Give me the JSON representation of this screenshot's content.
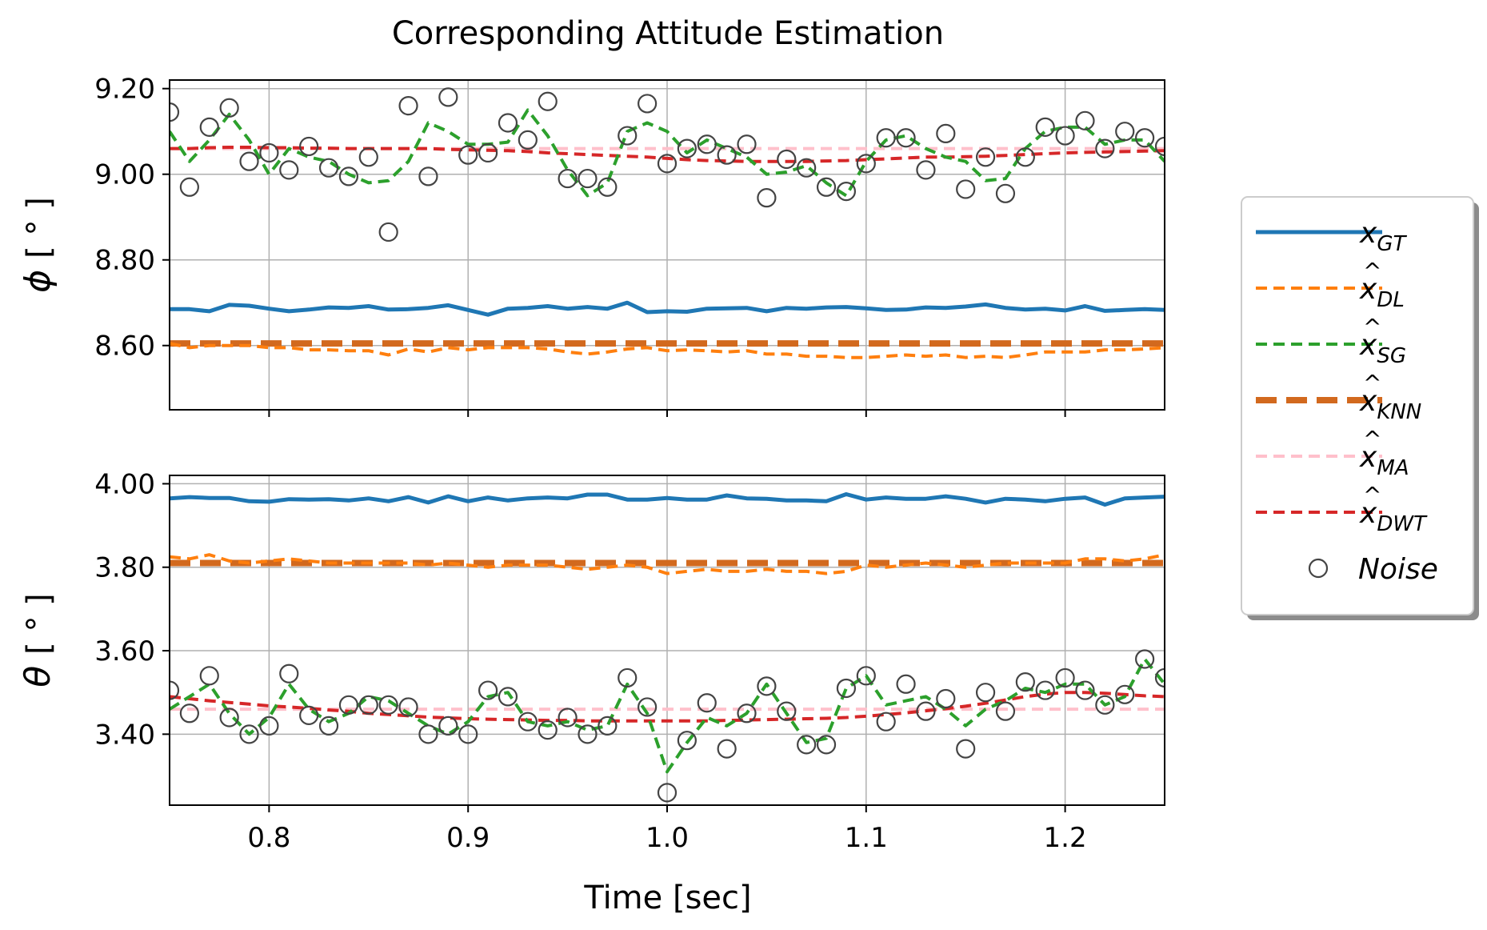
{
  "title": "Corresponding Attitude Estimation",
  "xlabel": "Time [sec]",
  "legend": {
    "placement": "right, outside plots",
    "entries": [
      {
        "key": "gt",
        "base": "x",
        "sub": "GT",
        "hat": false,
        "color": "#1f77b4",
        "style": "solid"
      },
      {
        "key": "dl",
        "base": "x",
        "sub": "DL",
        "hat": true,
        "color": "#ff7f0e",
        "style": "dashed"
      },
      {
        "key": "sg",
        "base": "x",
        "sub": "SG",
        "hat": true,
        "color": "#2ca02c",
        "style": "dashed"
      },
      {
        "key": "knn",
        "base": "x",
        "sub": "KNN",
        "hat": true,
        "color": "#d2691e",
        "style": "thick-dashed"
      },
      {
        "key": "ma",
        "base": "x",
        "sub": "MA",
        "hat": true,
        "color": "#ffc0cb",
        "style": "dashed"
      },
      {
        "key": "dwt",
        "base": "x",
        "sub": "DWT",
        "hat": true,
        "color": "#d62728",
        "style": "dashed"
      },
      {
        "key": "noise",
        "label": "Noise",
        "color": "#444444",
        "style": "marker-o"
      }
    ]
  },
  "chart_data": [
    {
      "type": "line",
      "ylabel_symbol": "ϕ",
      "ylabel_unit": "[ ° ]",
      "xlim": [
        0.75,
        1.25
      ],
      "ylim": [
        8.45,
        9.22
      ],
      "xticks": [
        0.8,
        0.9,
        1.0,
        1.1,
        1.2
      ],
      "xtick_labels": [
        "0.8",
        "0.9",
        "1.0",
        "1.1",
        "1.2"
      ],
      "yticks": [
        8.6,
        8.8,
        9.0,
        9.2
      ],
      "ytick_labels": [
        "8.60",
        "8.80",
        "9.00",
        "9.20"
      ],
      "grid": true,
      "x": [
        0.75,
        0.76,
        0.77,
        0.78,
        0.79,
        0.8,
        0.81,
        0.82,
        0.83,
        0.84,
        0.85,
        0.86,
        0.87,
        0.88,
        0.89,
        0.9,
        0.91,
        0.92,
        0.93,
        0.94,
        0.95,
        0.96,
        0.97,
        0.98,
        0.99,
        1.0,
        1.01,
        1.02,
        1.03,
        1.04,
        1.05,
        1.06,
        1.07,
        1.08,
        1.09,
        1.1,
        1.11,
        1.12,
        1.13,
        1.14,
        1.15,
        1.16,
        1.17,
        1.18,
        1.19,
        1.2,
        1.21,
        1.22,
        1.23,
        1.24,
        1.25
      ],
      "series": [
        {
          "key": "gt",
          "values": [
            8.685,
            8.685,
            8.68,
            8.695,
            8.693,
            8.686,
            8.68,
            8.684,
            8.689,
            8.688,
            8.692,
            8.684,
            8.685,
            8.688,
            8.694,
            8.683,
            8.672,
            8.686,
            8.688,
            8.692,
            8.686,
            8.69,
            8.686,
            8.7,
            8.678,
            8.68,
            8.679,
            8.686,
            8.687,
            8.688,
            8.68,
            8.688,
            8.686,
            8.689,
            8.69,
            8.687,
            8.683,
            8.684,
            8.689,
            8.688,
            8.691,
            8.696,
            8.688,
            8.684,
            8.686,
            8.682,
            8.692,
            8.681,
            8.683,
            8.685,
            8.683
          ]
        },
        {
          "key": "dl",
          "values": [
            8.605,
            8.595,
            8.6,
            8.6,
            8.6,
            8.595,
            8.595,
            8.59,
            8.59,
            8.588,
            8.588,
            8.578,
            8.592,
            8.585,
            8.595,
            8.59,
            8.595,
            8.595,
            8.595,
            8.592,
            8.585,
            8.58,
            8.585,
            8.592,
            8.595,
            8.588,
            8.59,
            8.588,
            8.585,
            8.588,
            8.58,
            8.58,
            8.575,
            8.575,
            8.572,
            8.572,
            8.575,
            8.578,
            8.575,
            8.578,
            8.572,
            8.575,
            8.572,
            8.578,
            8.585,
            8.585,
            8.585,
            8.59,
            8.59,
            8.592,
            8.595
          ]
        },
        {
          "key": "sg",
          "values": [
            9.1,
            9.03,
            9.08,
            9.14,
            9.08,
            9.0,
            9.06,
            9.04,
            9.03,
            9.0,
            8.98,
            8.985,
            9.03,
            9.12,
            9.1,
            9.07,
            9.07,
            9.075,
            9.15,
            9.09,
            9.01,
            8.95,
            8.98,
            9.1,
            9.12,
            9.1,
            9.05,
            9.08,
            9.06,
            9.04,
            9.0,
            9.005,
            9.02,
            8.98,
            8.95,
            9.03,
            9.08,
            9.09,
            9.06,
            9.04,
            9.03,
            8.985,
            8.99,
            9.06,
            9.1,
            9.11,
            9.11,
            9.07,
            9.08,
            9.08,
            9.03
          ]
        },
        {
          "key": "knn",
          "values": [
            8.605,
            8.605,
            8.605,
            8.605,
            8.605,
            8.605,
            8.605,
            8.605,
            8.605,
            8.605,
            8.605,
            8.605,
            8.605,
            8.605,
            8.605,
            8.605,
            8.605,
            8.605,
            8.605,
            8.605,
            8.605,
            8.605,
            8.605,
            8.605,
            8.605,
            8.605,
            8.605,
            8.605,
            8.605,
            8.605,
            8.605,
            8.605,
            8.605,
            8.605,
            8.605,
            8.605,
            8.605,
            8.605,
            8.605,
            8.605,
            8.605,
            8.605,
            8.605,
            8.605,
            8.605,
            8.605,
            8.605,
            8.605,
            8.605,
            8.605,
            8.605
          ]
        },
        {
          "key": "ma",
          "values": [
            9.06,
            9.06,
            9.06,
            9.06,
            9.06,
            9.06,
            9.06,
            9.06,
            9.06,
            9.06,
            9.06,
            9.06,
            9.06,
            9.06,
            9.06,
            9.06,
            9.06,
            9.06,
            9.06,
            9.06,
            9.06,
            9.06,
            9.06,
            9.06,
            9.06,
            9.06,
            9.06,
            9.06,
            9.06,
            9.06,
            9.06,
            9.06,
            9.06,
            9.06,
            9.06,
            9.06,
            9.06,
            9.06,
            9.06,
            9.06,
            9.06,
            9.06,
            9.06,
            9.06,
            9.06,
            9.06,
            9.06,
            9.06,
            9.06,
            9.06,
            9.06
          ]
        },
        {
          "key": "dwt",
          "values": [
            9.06,
            9.06,
            9.062,
            9.063,
            9.063,
            9.062,
            9.062,
            9.061,
            9.061,
            9.06,
            9.06,
            9.06,
            9.06,
            9.06,
            9.058,
            9.057,
            9.056,
            9.055,
            9.053,
            9.05,
            9.048,
            9.046,
            9.044,
            9.042,
            9.04,
            9.037,
            9.034,
            9.032,
            9.031,
            9.03,
            9.03,
            9.03,
            9.03,
            9.031,
            9.032,
            9.034,
            9.036,
            9.038,
            9.04,
            9.04,
            9.041,
            9.042,
            9.044,
            9.046,
            9.048,
            9.05,
            9.051,
            9.052,
            9.053,
            9.054,
            9.055
          ]
        },
        {
          "key": "noise",
          "values": [
            9.145,
            8.97,
            9.11,
            9.155,
            9.03,
            9.05,
            9.01,
            9.065,
            9.015,
            8.995,
            9.04,
            8.865,
            9.16,
            8.995,
            9.18,
            9.045,
            9.05,
            9.12,
            9.08,
            9.17,
            8.99,
            8.99,
            8.97,
            9.09,
            9.165,
            9.025,
            9.06,
            9.07,
            9.045,
            9.07,
            8.945,
            9.035,
            9.015,
            8.97,
            8.96,
            9.025,
            9.085,
            9.085,
            9.01,
            9.095,
            8.965,
            9.04,
            8.955,
            9.04,
            9.11,
            9.09,
            9.125,
            9.06,
            9.1,
            9.085,
            9.065
          ]
        }
      ]
    },
    {
      "type": "line",
      "ylabel_symbol": "θ",
      "ylabel_unit": "[ ° ]",
      "xlim": [
        0.75,
        1.25
      ],
      "ylim": [
        3.23,
        4.02
      ],
      "xticks": [
        0.8,
        0.9,
        1.0,
        1.1,
        1.2
      ],
      "xtick_labels": [
        "0.8",
        "0.9",
        "1.0",
        "1.1",
        "1.2"
      ],
      "yticks": [
        3.4,
        3.6,
        3.8,
        4.0
      ],
      "ytick_labels": [
        "3.40",
        "3.60",
        "3.80",
        "4.00"
      ],
      "grid": true,
      "x": [
        0.75,
        0.76,
        0.77,
        0.78,
        0.79,
        0.8,
        0.81,
        0.82,
        0.83,
        0.84,
        0.85,
        0.86,
        0.87,
        0.88,
        0.89,
        0.9,
        0.91,
        0.92,
        0.93,
        0.94,
        0.95,
        0.96,
        0.97,
        0.98,
        0.99,
        1.0,
        1.01,
        1.02,
        1.03,
        1.04,
        1.05,
        1.06,
        1.07,
        1.08,
        1.09,
        1.1,
        1.11,
        1.12,
        1.13,
        1.14,
        1.15,
        1.16,
        1.17,
        1.18,
        1.19,
        1.2,
        1.21,
        1.22,
        1.23,
        1.24,
        1.25
      ],
      "series": [
        {
          "key": "gt",
          "values": [
            3.965,
            3.968,
            3.966,
            3.966,
            3.958,
            3.957,
            3.963,
            3.962,
            3.963,
            3.96,
            3.965,
            3.958,
            3.968,
            3.955,
            3.97,
            3.958,
            3.967,
            3.96,
            3.965,
            3.967,
            3.965,
            3.974,
            3.974,
            3.962,
            3.962,
            3.966,
            3.962,
            3.962,
            3.972,
            3.965,
            3.964,
            3.96,
            3.96,
            3.958,
            3.975,
            3.962,
            3.967,
            3.964,
            3.964,
            3.97,
            3.964,
            3.955,
            3.964,
            3.962,
            3.958,
            3.964,
            3.967,
            3.95,
            3.965,
            3.967,
            3.969
          ]
        },
        {
          "key": "dl",
          "values": [
            3.825,
            3.82,
            3.83,
            3.815,
            3.81,
            3.815,
            3.82,
            3.815,
            3.81,
            3.81,
            3.81,
            3.81,
            3.81,
            3.805,
            3.81,
            3.805,
            3.8,
            3.805,
            3.805,
            3.805,
            3.8,
            3.795,
            3.8,
            3.805,
            3.8,
            3.785,
            3.79,
            3.795,
            3.79,
            3.79,
            3.795,
            3.79,
            3.79,
            3.785,
            3.79,
            3.805,
            3.8,
            3.805,
            3.81,
            3.805,
            3.8,
            3.805,
            3.81,
            3.81,
            3.81,
            3.81,
            3.82,
            3.82,
            3.815,
            3.82,
            3.83
          ]
        },
        {
          "key": "sg",
          "values": [
            3.46,
            3.49,
            3.52,
            3.45,
            3.4,
            3.44,
            3.52,
            3.46,
            3.43,
            3.45,
            3.49,
            3.48,
            3.45,
            3.42,
            3.4,
            3.43,
            3.49,
            3.5,
            3.43,
            3.42,
            3.43,
            3.41,
            3.42,
            3.52,
            3.45,
            3.31,
            3.38,
            3.44,
            3.42,
            3.45,
            3.52,
            3.45,
            3.38,
            3.39,
            3.51,
            3.54,
            3.47,
            3.48,
            3.49,
            3.46,
            3.42,
            3.46,
            3.48,
            3.51,
            3.5,
            3.52,
            3.52,
            3.47,
            3.49,
            3.58,
            3.52
          ]
        },
        {
          "key": "knn",
          "values": [
            3.81,
            3.81,
            3.81,
            3.81,
            3.81,
            3.81,
            3.81,
            3.81,
            3.81,
            3.81,
            3.81,
            3.81,
            3.81,
            3.81,
            3.81,
            3.81,
            3.81,
            3.81,
            3.81,
            3.81,
            3.81,
            3.81,
            3.81,
            3.81,
            3.81,
            3.81,
            3.81,
            3.81,
            3.81,
            3.81,
            3.81,
            3.81,
            3.81,
            3.81,
            3.81,
            3.81,
            3.81,
            3.81,
            3.81,
            3.81,
            3.81,
            3.81,
            3.81,
            3.81,
            3.81,
            3.81,
            3.81,
            3.81,
            3.81,
            3.81,
            3.81
          ]
        },
        {
          "key": "ma",
          "values": [
            3.46,
            3.46,
            3.46,
            3.46,
            3.46,
            3.46,
            3.46,
            3.46,
            3.46,
            3.46,
            3.46,
            3.46,
            3.46,
            3.46,
            3.46,
            3.46,
            3.46,
            3.46,
            3.46,
            3.46,
            3.46,
            3.46,
            3.46,
            3.46,
            3.46,
            3.46,
            3.46,
            3.46,
            3.46,
            3.46,
            3.46,
            3.46,
            3.46,
            3.46,
            3.46,
            3.46,
            3.46,
            3.46,
            3.46,
            3.46,
            3.46,
            3.46,
            3.46,
            3.46,
            3.46,
            3.46,
            3.46,
            3.46,
            3.46,
            3.46,
            3.46
          ]
        },
        {
          "key": "dwt",
          "values": [
            3.49,
            3.485,
            3.48,
            3.476,
            3.472,
            3.468,
            3.465,
            3.462,
            3.458,
            3.455,
            3.45,
            3.447,
            3.444,
            3.441,
            3.439,
            3.437,
            3.436,
            3.435,
            3.434,
            3.433,
            3.433,
            3.432,
            3.432,
            3.432,
            3.432,
            3.432,
            3.432,
            3.432,
            3.433,
            3.434,
            3.435,
            3.436,
            3.437,
            3.438,
            3.44,
            3.443,
            3.447,
            3.451,
            3.456,
            3.461,
            3.467,
            3.474,
            3.482,
            3.49,
            3.496,
            3.5,
            3.5,
            3.498,
            3.495,
            3.492,
            3.49
          ]
        },
        {
          "key": "noise",
          "values": [
            3.505,
            3.45,
            3.54,
            3.44,
            3.4,
            3.42,
            3.545,
            3.445,
            3.42,
            3.47,
            3.47,
            3.47,
            3.465,
            3.4,
            3.42,
            3.4,
            3.505,
            3.49,
            3.43,
            3.41,
            3.44,
            3.4,
            3.42,
            3.535,
            3.465,
            3.26,
            3.385,
            3.475,
            3.365,
            3.45,
            3.515,
            3.455,
            3.375,
            3.375,
            3.51,
            3.54,
            3.43,
            3.52,
            3.455,
            3.485,
            3.365,
            3.5,
            3.455,
            3.525,
            3.505,
            3.535,
            3.505,
            3.47,
            3.495,
            3.58,
            3.535
          ]
        }
      ]
    }
  ]
}
